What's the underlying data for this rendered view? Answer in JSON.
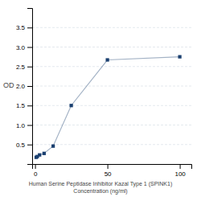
{
  "chart_data": {
    "type": "line",
    "xlabel": "Human Serine Peptidase Inhibitor Kazal Type 1 (SPINK1)\nConcentration (ng/ml)",
    "ylabel": "OD",
    "x": [
      0.781,
      1.563,
      3.125,
      6.25,
      12.5,
      25,
      50,
      100
    ],
    "values": [
      0.172,
      0.192,
      0.233,
      0.272,
      0.46,
      1.5,
      2.67,
      2.75
    ],
    "color": "#1a3f6f",
    "marker": "square",
    "xlim": [
      -2,
      108
    ],
    "ylim": [
      0,
      4.0
    ],
    "xticks": [
      0,
      50,
      100
    ],
    "yticks": [
      0.5,
      {
        "value": 1.0,
        "label": "1.0"
      },
      1.5,
      {
        "value": 2.0,
        "label": "2.0"
      },
      2.5,
      {
        "value": 3.0,
        "label": "3.0"
      },
      3.5
    ],
    "grid": true
  }
}
